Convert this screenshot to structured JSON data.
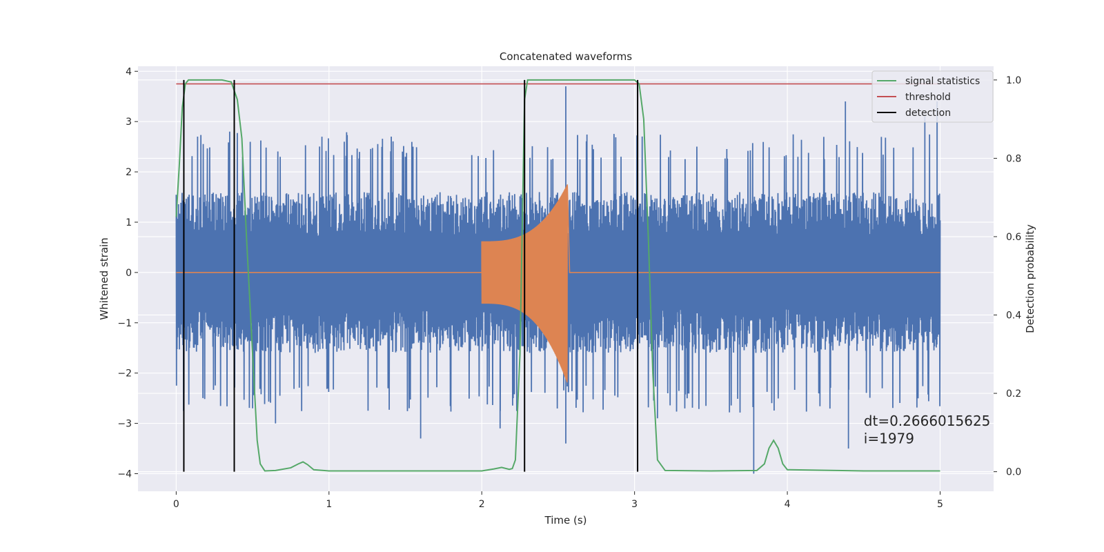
{
  "chart_data": {
    "type": "line",
    "title": "Concatenated waveforms",
    "xlabel": "Time (s)",
    "ylabel_left": "Whitened strain",
    "ylabel_right": "Detection probability",
    "xlim": [
      -0.25,
      5.35
    ],
    "ylim_left": [
      -4.35,
      4.1
    ],
    "ylim_right": [
      -0.05,
      1.035
    ],
    "x_ticks": [
      0,
      1,
      2,
      3,
      4,
      5
    ],
    "y_left_ticks": [
      4,
      3,
      2,
      1,
      0,
      -1,
      -2,
      -3,
      -4
    ],
    "y_left_tick_labels": [
      "4",
      "3",
      "2",
      "1",
      "0",
      "−1",
      "−2",
      "−3",
      "−4"
    ],
    "y_right_ticks": [
      1.0,
      0.8,
      0.6,
      0.4,
      0.2,
      0.0
    ],
    "y_right_tick_labels": [
      "1.0",
      "0.8",
      "0.6",
      "0.4",
      "0.2",
      "0.0"
    ],
    "grid": true,
    "legend_position": "top-right",
    "legend": [
      {
        "label": "signal statistics",
        "color": "#55a868"
      },
      {
        "label": "threshold",
        "color": "#c44e52"
      },
      {
        "label": "detection",
        "color": "#000000"
      }
    ],
    "series": [
      {
        "role": "noisy-strain",
        "axis": "left",
        "color": "#4c72b0",
        "x_range": [
          0,
          5
        ],
        "envelope_typical": 1.6,
        "envelope_peak": 2.8,
        "spikes": [
          {
            "x": 0.05,
            "y": -2.4
          },
          {
            "x": 0.14,
            "y": 2.7
          },
          {
            "x": 0.35,
            "y": 2.8
          },
          {
            "x": 0.5,
            "y": -2.7
          },
          {
            "x": 0.65,
            "y": -3.0
          },
          {
            "x": 1.1,
            "y": 2.6
          },
          {
            "x": 1.55,
            "y": 2.5
          },
          {
            "x": 1.6,
            "y": -3.3
          },
          {
            "x": 2.12,
            "y": -3.1
          },
          {
            "x": 2.55,
            "y": 3.7
          },
          {
            "x": 2.55,
            "y": -3.4
          },
          {
            "x": 3.15,
            "y": -2.9
          },
          {
            "x": 3.78,
            "y": -4.0
          },
          {
            "x": 4.38,
            "y": 3.4
          },
          {
            "x": 4.4,
            "y": -3.5
          },
          {
            "x": 4.9,
            "y": 3.1
          },
          {
            "x": 4.98,
            "y": 3.4
          }
        ]
      },
      {
        "role": "injected-waveform",
        "axis": "left",
        "color": "#dd8452",
        "chirp": {
          "start": 2.0,
          "end": 2.56,
          "amp_start": 0.62,
          "amp_end": 1.75,
          "amp_neg_end": 2.2
        }
      },
      {
        "name": "signal statistics",
        "axis": "right",
        "color": "#55a868",
        "x": [
          0,
          0.02,
          0.04,
          0.06,
          0.08,
          0.1,
          0.2,
          0.3,
          0.36,
          0.4,
          0.43,
          0.46,
          0.5,
          0.53,
          0.55,
          0.58,
          0.65,
          0.75,
          0.8,
          0.83,
          0.86,
          0.9,
          1.0,
          1.5,
          2.0,
          2.08,
          2.13,
          2.18,
          2.2,
          2.22,
          2.25,
          2.28,
          2.3,
          2.5,
          2.8,
          3.0,
          3.03,
          3.06,
          3.09,
          3.12,
          3.15,
          3.2,
          3.5,
          3.8,
          3.85,
          3.88,
          3.91,
          3.94,
          3.97,
          4.0,
          4.5,
          5.0
        ],
        "y": [
          0.65,
          0.78,
          0.93,
          0.99,
          1.0,
          1.0,
          1.0,
          1.0,
          0.995,
          0.95,
          0.85,
          0.6,
          0.3,
          0.08,
          0.02,
          0.002,
          0.003,
          0.01,
          0.02,
          0.025,
          0.018,
          0.005,
          0.002,
          0.002,
          0.002,
          0.007,
          0.011,
          0.006,
          0.008,
          0.03,
          0.3,
          0.95,
          1.0,
          1.0,
          1.0,
          1.0,
          0.99,
          0.9,
          0.6,
          0.25,
          0.03,
          0.003,
          0.002,
          0.003,
          0.02,
          0.06,
          0.08,
          0.06,
          0.02,
          0.005,
          0.002,
          0.002
        ]
      },
      {
        "name": "threshold",
        "axis": "right",
        "color": "#c44e52",
        "x": [
          0,
          5
        ],
        "y": [
          0.99,
          0.99
        ]
      },
      {
        "name": "detection",
        "axis": "right",
        "color": "#000000",
        "type": "vlines",
        "x": [
          0.05,
          0.38,
          2.28,
          3.02
        ],
        "ymin": 0.0,
        "ymax": 1.0
      }
    ],
    "annotations": [
      {
        "text": "dt=0.2666015625",
        "x": 4.5,
        "y": -3.05
      },
      {
        "text": " i=1979",
        "x": 4.5,
        "y": -3.4
      }
    ]
  }
}
